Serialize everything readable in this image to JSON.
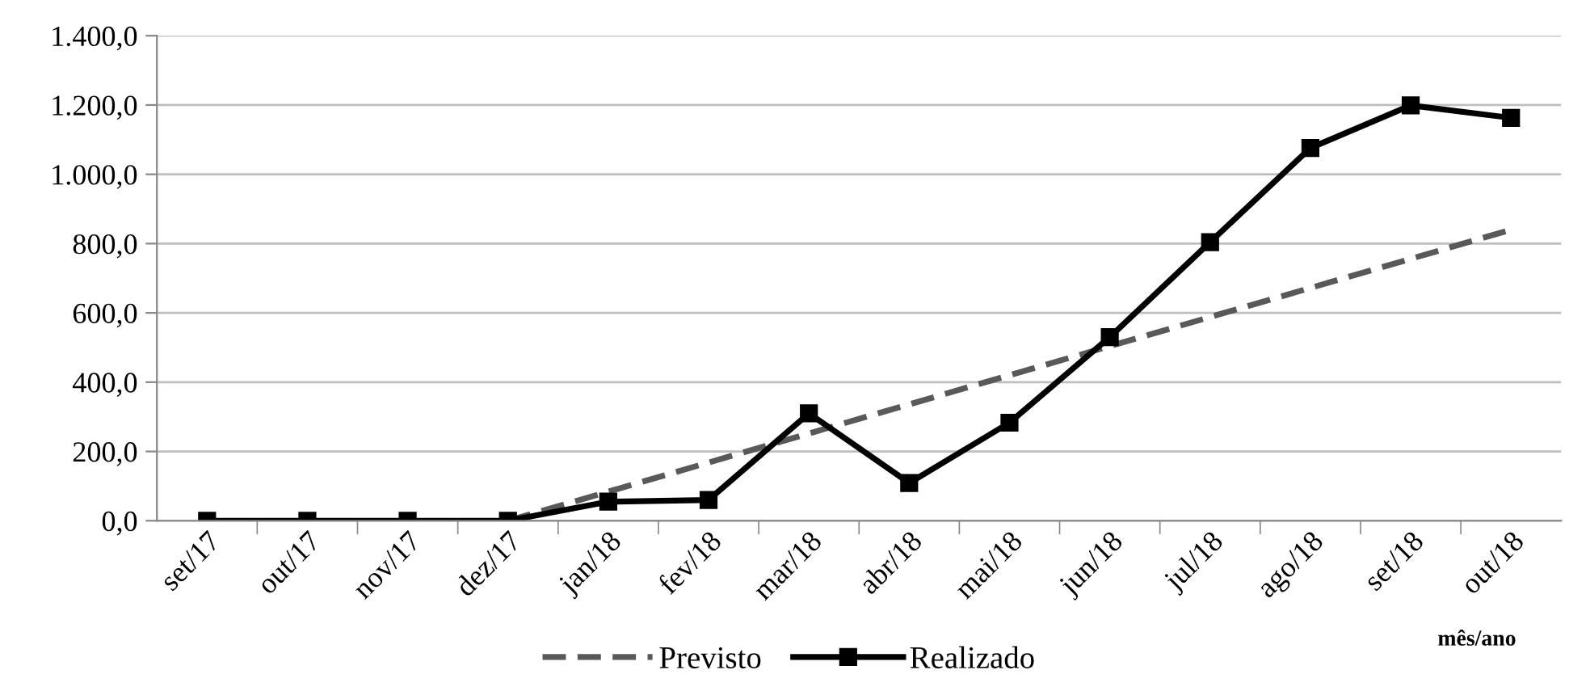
{
  "chart_data": {
    "type": "line",
    "categories": [
      "set/17",
      "out/17",
      "nov/17",
      "dez/17",
      "jan/18",
      "fev/18",
      "mar/18",
      "abr/18",
      "mai/18",
      "jun/18",
      "jul/18",
      "ago/18",
      "set/18",
      "out/18"
    ],
    "series": [
      {
        "name": "Previsto",
        "color": "#595959",
        "line_style": "dashed",
        "marker": "none",
        "values": [
          null,
          null,
          null,
          0,
          84,
          168,
          252,
          336,
          420,
          504,
          588,
          672,
          756,
          840
        ]
      },
      {
        "name": "Realizado",
        "color": "#000000",
        "line_style": "solid",
        "marker": "square",
        "values": [
          0,
          0,
          0,
          0,
          55,
          60,
          310,
          109,
          283,
          530,
          804,
          1076,
          1199,
          1163
        ]
      }
    ],
    "xlabel": "mês/ano",
    "ylim": [
      0,
      1400
    ],
    "yticks": [
      {
        "value": 0,
        "label": "0,0"
      },
      {
        "value": 200,
        "label": "200,0"
      },
      {
        "value": 400,
        "label": "400,0"
      },
      {
        "value": 600,
        "label": "600,0"
      },
      {
        "value": 800,
        "label": "800,0"
      },
      {
        "value": 1000,
        "label": "1.000,0"
      },
      {
        "value": 1200,
        "label": "1.200,0"
      },
      {
        "value": 1400,
        "label": "1.400,0"
      }
    ],
    "grid": "y",
    "legend": "bottom"
  }
}
